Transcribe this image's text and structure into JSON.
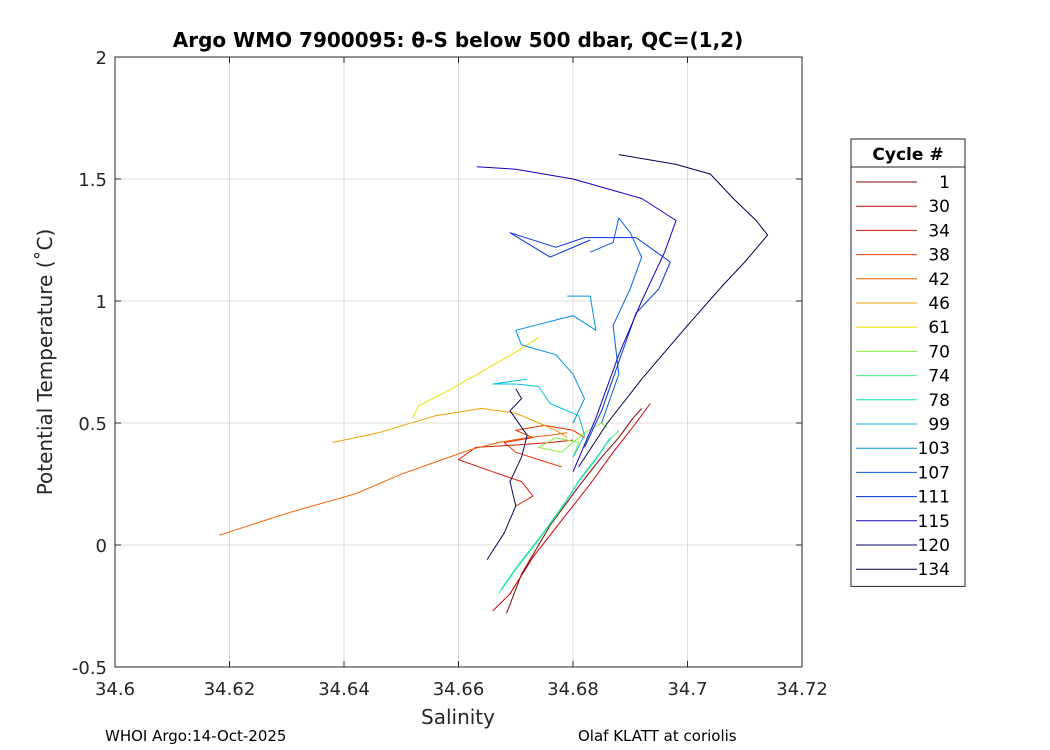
{
  "chart_data": {
    "type": "line",
    "title": "Argo WMO 7900095: θ-S below 500 dbar,  QC=(1,2)",
    "xlabel": "Salinity",
    "ylabel": "Potential Temperature (˚C)",
    "xlim": [
      34.6,
      34.72
    ],
    "ylim": [
      -0.5,
      2
    ],
    "xticks": [
      34.6,
      34.62,
      34.64,
      34.66,
      34.68,
      34.7,
      34.72
    ],
    "xtick_labels": [
      "34.6",
      "34.62",
      "34.64",
      "34.66",
      "34.68",
      "34.7",
      "34.72"
    ],
    "yticks": [
      -0.5,
      0,
      0.5,
      1,
      1.5,
      2
    ],
    "ytick_labels": [
      "-0.5",
      "0",
      "0.5",
      "1",
      "1.5",
      "2"
    ],
    "grid": true,
    "legend_title": "Cycle #",
    "legend_position": "right",
    "series": [
      {
        "name": "1",
        "color": "#800000",
        "points": [
          [
            34.6684,
            -0.28
          ],
          [
            34.671,
            -0.12
          ],
          [
            34.676,
            0.08
          ],
          [
            34.681,
            0.24
          ],
          [
            34.685,
            0.36
          ],
          [
            34.688,
            0.44
          ],
          [
            34.6905,
            0.52
          ],
          [
            34.692,
            0.56
          ]
        ]
      },
      {
        "name": "30",
        "color": "#cc0000",
        "points": [
          [
            34.666,
            -0.27
          ],
          [
            34.669,
            -0.2
          ],
          [
            34.673,
            -0.05
          ],
          [
            34.678,
            0.1
          ],
          [
            34.683,
            0.25
          ],
          [
            34.687,
            0.38
          ],
          [
            34.691,
            0.5
          ],
          [
            34.6935,
            0.58
          ]
        ]
      },
      {
        "name": "34",
        "color": "#e01a00",
        "points": [
          [
            34.67,
            0.16
          ],
          [
            34.673,
            0.2
          ],
          [
            34.671,
            0.26
          ],
          [
            34.666,
            0.3
          ],
          [
            34.66,
            0.35
          ],
          [
            34.663,
            0.4
          ],
          [
            34.67,
            0.41
          ],
          [
            34.676,
            0.42
          ],
          [
            34.68,
            0.43
          ]
        ]
      },
      {
        "name": "38",
        "color": "#f03000",
        "points": [
          [
            34.678,
            0.32
          ],
          [
            34.674,
            0.35
          ],
          [
            34.67,
            0.38
          ],
          [
            34.668,
            0.42
          ],
          [
            34.673,
            0.44
          ],
          [
            34.67,
            0.47
          ],
          [
            34.675,
            0.49
          ],
          [
            34.68,
            0.47
          ],
          [
            34.682,
            0.44
          ]
        ]
      },
      {
        "name": "42",
        "color": "#f06000",
        "points": [
          [
            34.6182,
            0.04
          ],
          [
            34.63,
            0.13
          ],
          [
            34.642,
            0.21
          ],
          [
            34.65,
            0.29
          ],
          [
            34.656,
            0.34
          ],
          [
            34.662,
            0.39
          ],
          [
            34.667,
            0.42
          ],
          [
            34.672,
            0.44
          ],
          [
            34.676,
            0.45
          ],
          [
            34.679,
            0.46
          ]
        ]
      },
      {
        "name": "46",
        "color": "#f0a000",
        "points": [
          [
            34.638,
            0.42
          ],
          [
            34.646,
            0.46
          ],
          [
            34.656,
            0.53
          ],
          [
            34.664,
            0.56
          ],
          [
            34.67,
            0.54
          ],
          [
            34.674,
            0.5
          ],
          [
            34.677,
            0.47
          ],
          [
            34.679,
            0.44
          ]
        ]
      },
      {
        "name": "61",
        "color": "#f0e000",
        "points": [
          [
            34.652,
            0.52
          ],
          [
            34.653,
            0.57
          ],
          [
            34.658,
            0.63
          ],
          [
            34.664,
            0.71
          ],
          [
            34.67,
            0.79
          ],
          [
            34.674,
            0.85
          ]
        ]
      },
      {
        "name": "70",
        "color": "#80f040",
        "points": [
          [
            34.68,
            0.36
          ],
          [
            34.681,
            0.42
          ],
          [
            34.677,
            0.44
          ],
          [
            34.674,
            0.4
          ],
          [
            34.678,
            0.38
          ],
          [
            34.682,
            0.46
          ],
          [
            34.685,
            0.5
          ],
          [
            34.686,
            0.48
          ]
        ]
      },
      {
        "name": "74",
        "color": "#40f080",
        "points": [
          [
            34.667,
            -0.2
          ],
          [
            34.67,
            -0.1
          ],
          [
            34.674,
            0.02
          ],
          [
            34.678,
            0.15
          ],
          [
            34.681,
            0.26
          ],
          [
            34.684,
            0.35
          ],
          [
            34.686,
            0.42
          ],
          [
            34.688,
            0.47
          ]
        ]
      },
      {
        "name": "78",
        "color": "#10e0b0",
        "points": [
          [
            34.6675,
            -0.18
          ],
          [
            34.6705,
            -0.08
          ],
          [
            34.6745,
            0.04
          ],
          [
            34.6785,
            0.17
          ],
          [
            34.6815,
            0.28
          ],
          [
            34.6845,
            0.37
          ],
          [
            34.6865,
            0.44
          ]
        ]
      },
      {
        "name": "99",
        "color": "#00c0e0",
        "points": [
          [
            34.68,
            0.36
          ],
          [
            34.682,
            0.45
          ],
          [
            34.681,
            0.53
          ],
          [
            34.676,
            0.58
          ],
          [
            34.674,
            0.65
          ],
          [
            34.67,
            0.66
          ],
          [
            34.666,
            0.66
          ],
          [
            34.672,
            0.68
          ]
        ]
      },
      {
        "name": "103",
        "color": "#0090e0",
        "points": [
          [
            34.68,
            0.5
          ],
          [
            34.682,
            0.6
          ],
          [
            34.68,
            0.7
          ],
          [
            34.677,
            0.78
          ],
          [
            34.671,
            0.82
          ],
          [
            34.67,
            0.88
          ],
          [
            34.68,
            0.94
          ],
          [
            34.684,
            0.88
          ],
          [
            34.683,
            1.02
          ],
          [
            34.679,
            1.02
          ]
        ]
      },
      {
        "name": "107",
        "color": "#0060e0",
        "points": [
          [
            34.685,
            0.5
          ],
          [
            34.688,
            0.7
          ],
          [
            34.687,
            0.9
          ],
          [
            34.69,
            1.05
          ],
          [
            34.692,
            1.18
          ],
          [
            34.69,
            1.28
          ],
          [
            34.688,
            1.34
          ],
          [
            34.687,
            1.24
          ],
          [
            34.683,
            1.2
          ]
        ]
      },
      {
        "name": "111",
        "color": "#0030e0",
        "points": [
          [
            34.682,
            0.4
          ],
          [
            34.685,
            0.55
          ],
          [
            34.688,
            0.75
          ],
          [
            34.691,
            0.95
          ],
          [
            34.695,
            1.05
          ],
          [
            34.697,
            1.16
          ],
          [
            34.691,
            1.26
          ],
          [
            34.682,
            1.26
          ],
          [
            34.677,
            1.22
          ],
          [
            34.669,
            1.28
          ],
          [
            34.676,
            1.18
          ],
          [
            34.683,
            1.25
          ]
        ]
      },
      {
        "name": "115",
        "color": "#1000c0",
        "points": [
          [
            34.68,
            0.3
          ],
          [
            34.684,
            0.52
          ],
          [
            34.688,
            0.78
          ],
          [
            34.692,
            1.0
          ],
          [
            34.696,
            1.2
          ],
          [
            34.698,
            1.33
          ],
          [
            34.692,
            1.42
          ],
          [
            34.68,
            1.5
          ],
          [
            34.67,
            1.54
          ],
          [
            34.6632,
            1.55
          ]
        ]
      },
      {
        "name": "120",
        "color": "#0a0a60",
        "points": [
          [
            34.665,
            -0.06
          ],
          [
            34.668,
            0.05
          ],
          [
            34.67,
            0.16
          ],
          [
            34.669,
            0.26
          ],
          [
            34.671,
            0.36
          ],
          [
            34.672,
            0.45
          ],
          [
            34.669,
            0.55
          ],
          [
            34.671,
            0.6
          ],
          [
            34.67,
            0.64
          ]
        ]
      },
      {
        "name": "134",
        "color": "#000050",
        "points": [
          [
            34.681,
            0.32
          ],
          [
            34.686,
            0.5
          ],
          [
            34.692,
            0.68
          ],
          [
            34.7,
            0.9
          ],
          [
            34.706,
            1.06
          ],
          [
            34.71,
            1.16
          ],
          [
            34.714,
            1.27
          ],
          [
            34.712,
            1.33
          ],
          [
            34.708,
            1.42
          ],
          [
            34.704,
            1.52
          ],
          [
            34.698,
            1.56
          ],
          [
            34.688,
            1.6
          ]
        ]
      }
    ]
  },
  "footer": {
    "left": "WHOI Argo:14-Oct-2025",
    "right": "Olaf KLATT at coriolis"
  }
}
